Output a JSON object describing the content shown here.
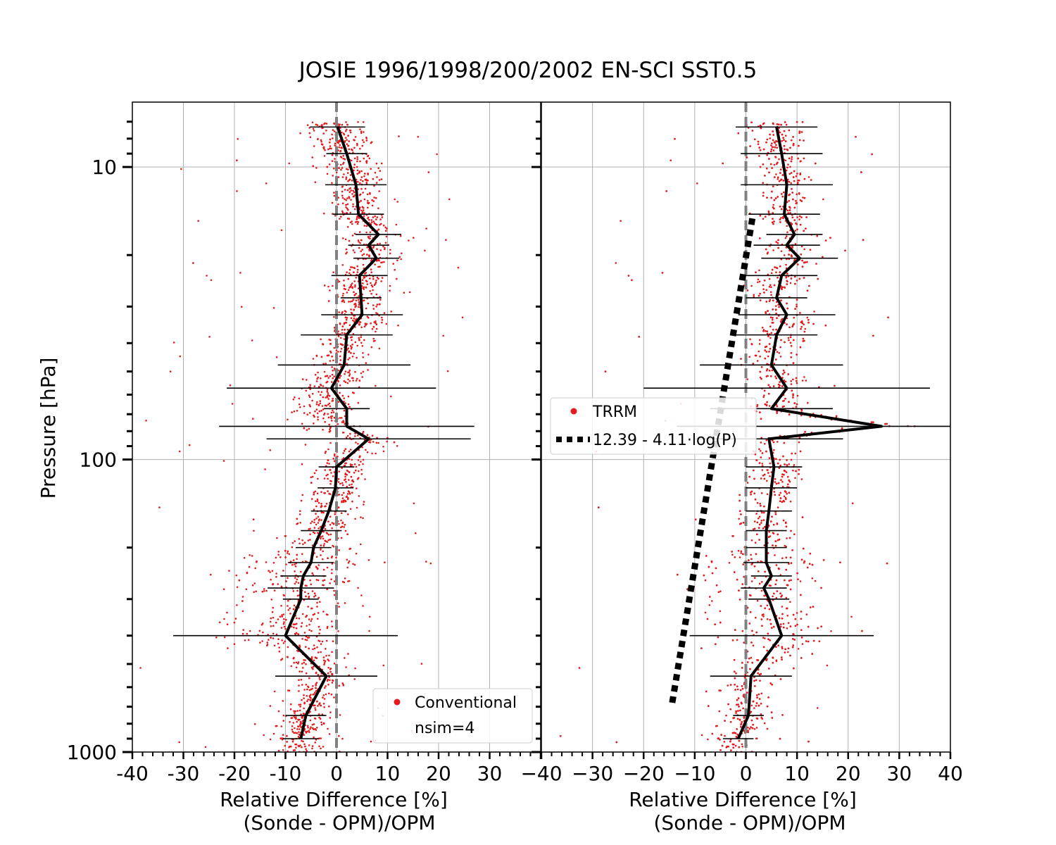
{
  "figure": {
    "title": "JOSIE 1996/1998/200/2002 EN-SCI SST0.5",
    "ylabel": "Pressure [hPa]",
    "xlabel_line1": "Relative Difference [%]",
    "xlabel_line2": "(Sonde - OPM)/OPM"
  },
  "chart_data": [
    {
      "type": "line",
      "panel": "left",
      "x_axis": {
        "range": [
          -40,
          40
        ],
        "ticks": [
          -40,
          -30,
          -20,
          -10,
          0,
          10,
          20,
          30
        ],
        "tick_labels": [
          "-40",
          "-30",
          "-20",
          "-10",
          "0",
          "10",
          "20",
          "30"
        ]
      },
      "y_axis": {
        "scale": "log",
        "inverted": true,
        "range": [
          1000,
          6
        ],
        "ticks": [
          10,
          100,
          1000
        ],
        "tick_labels": [
          "10",
          "100",
          "1000"
        ]
      },
      "grid": true,
      "reference_line": {
        "x": 0,
        "color": "#808080",
        "style": "dashed"
      },
      "legend": {
        "placement": "lower-right",
        "entries": [
          "Conventional",
          "nsim=4"
        ]
      },
      "series": [
        {
          "name": "Conventional",
          "kind": "median-with-error-bars",
          "color": "#000000",
          "points": [
            {
              "p": 7.3,
              "x": 0.2,
              "err": 5.4
            },
            {
              "p": 9.0,
              "x": 2.0,
              "err": 4.0
            },
            {
              "p": 11.5,
              "x": 3.8,
              "err": 6.0
            },
            {
              "p": 14.5,
              "x": 4.3,
              "err": 5.0
            },
            {
              "p": 17.0,
              "x": 8.2,
              "err": 4.5
            },
            {
              "p": 18.5,
              "x": 6.3,
              "err": 4.0
            },
            {
              "p": 20.5,
              "x": 7.8,
              "err": 4.5
            },
            {
              "p": 23.5,
              "x": 4.5,
              "err": 5.5
            },
            {
              "p": 28.0,
              "x": 4.8,
              "err": 4.0
            },
            {
              "p": 32.0,
              "x": 5.0,
              "err": 8.0
            },
            {
              "p": 37.5,
              "x": 2.0,
              "err": 9.0
            },
            {
              "p": 47.5,
              "x": 1.5,
              "err": 13.0
            },
            {
              "p": 57.0,
              "x": -1.0,
              "err": 20.5
            },
            {
              "p": 67.0,
              "x": 2.0,
              "err": 4.5
            },
            {
              "p": 77.0,
              "x": 2.0,
              "err": 25.0
            },
            {
              "p": 85.0,
              "x": 6.3,
              "err": 20.0
            },
            {
              "p": 106.0,
              "x": 0.0,
              "err": 3.5
            },
            {
              "p": 125.0,
              "x": -0.2,
              "err": 3.5
            },
            {
              "p": 150.0,
              "x": -1.5,
              "err": 3.5
            },
            {
              "p": 175.0,
              "x": -3.0,
              "err": 4.0
            },
            {
              "p": 200.0,
              "x": -4.5,
              "err": 3.5
            },
            {
              "p": 225.0,
              "x": -5.0,
              "err": 4.5
            },
            {
              "p": 250.0,
              "x": -6.5,
              "err": 4.5
            },
            {
              "p": 275.0,
              "x": -7.0,
              "err": 6.5
            },
            {
              "p": 300.0,
              "x": -7.0,
              "err": 3.5
            },
            {
              "p": 400.0,
              "x": -10.0,
              "err": 22.0
            },
            {
              "p": 550.0,
              "x": -2.0,
              "err": 10.0
            },
            {
              "p": 750.0,
              "x": -6.0,
              "err": 4.0
            },
            {
              "p": 900.0,
              "x": -7.0,
              "err": 3.5
            }
          ]
        }
      ]
    },
    {
      "type": "line",
      "panel": "right",
      "x_axis": {
        "range": [
          -40,
          40
        ],
        "ticks": [
          -40,
          -30,
          -20,
          -10,
          0,
          10,
          20,
          30,
          40
        ],
        "tick_labels": [
          "−40",
          "−30",
          "−20",
          "−10",
          "0",
          "10",
          "20",
          "30",
          "40"
        ]
      },
      "y_axis": {
        "scale": "log",
        "inverted": true,
        "range": [
          1000,
          6
        ],
        "shared_with": "left"
      },
      "grid": true,
      "reference_line": {
        "x": 0,
        "color": "#808080",
        "style": "dashed"
      },
      "legend": {
        "placement": "center-left",
        "entries": [
          "TRRM",
          "12.39 - 4.11·log(P)"
        ]
      },
      "series": [
        {
          "name": "TRRM",
          "kind": "median-with-error-bars",
          "color": "#000000",
          "points": [
            {
              "p": 7.3,
              "x": 6.0,
              "err": 8.0
            },
            {
              "p": 9.0,
              "x": 7.0,
              "err": 8.0
            },
            {
              "p": 11.5,
              "x": 8.0,
              "err": 9.0
            },
            {
              "p": 14.5,
              "x": 7.5,
              "err": 7.0
            },
            {
              "p": 17.0,
              "x": 9.5,
              "err": 5.5
            },
            {
              "p": 18.5,
              "x": 8.0,
              "err": 6.5
            },
            {
              "p": 20.5,
              "x": 10.5,
              "err": 7.5
            },
            {
              "p": 23.5,
              "x": 7.0,
              "err": 7.0
            },
            {
              "p": 28.0,
              "x": 6.0,
              "err": 6.0
            },
            {
              "p": 32.0,
              "x": 8.0,
              "err": 9.5
            },
            {
              "p": 37.5,
              "x": 6.0,
              "err": 8.0
            },
            {
              "p": 47.5,
              "x": 5.0,
              "err": 14.0
            },
            {
              "p": 57.0,
              "x": 8.0,
              "err": 28.0
            },
            {
              "p": 67.0,
              "x": 5.0,
              "err": 12.0
            },
            {
              "p": 77.0,
              "x": 26.5,
              "err": 40.0
            },
            {
              "p": 85.0,
              "x": 4.5,
              "err": 14.5
            },
            {
              "p": 106.0,
              "x": 5.5,
              "err": 5.5
            },
            {
              "p": 125.0,
              "x": 5.0,
              "err": 5.0
            },
            {
              "p": 150.0,
              "x": 4.5,
              "err": 4.5
            },
            {
              "p": 175.0,
              "x": 4.0,
              "err": 4.0
            },
            {
              "p": 200.0,
              "x": 4.0,
              "err": 4.0
            },
            {
              "p": 225.0,
              "x": 4.0,
              "err": 4.5
            },
            {
              "p": 250.0,
              "x": 5.0,
              "err": 4.0
            },
            {
              "p": 275.0,
              "x": 3.5,
              "err": 4.5
            },
            {
              "p": 300.0,
              "x": 4.5,
              "err": 4.0
            },
            {
              "p": 400.0,
              "x": 7.0,
              "err": 18.0
            },
            {
              "p": 550.0,
              "x": 1.0,
              "err": 8.0
            },
            {
              "p": 750.0,
              "x": 0.5,
              "err": 3.0
            },
            {
              "p": 900.0,
              "x": -1.5,
              "err": 3.0
            }
          ]
        },
        {
          "name": "12.39 - 4.11·log(P)",
          "kind": "fit",
          "color": "#000000",
          "style": "dotted-thick",
          "formula": {
            "a": 12.39,
            "b": -4.11,
            "p_range": [
              15,
              700
            ]
          }
        }
      ]
    }
  ],
  "colors": {
    "scatter": "#e41a1c",
    "grid": "#b0b0b0",
    "zero_line": "#808080",
    "series": "#000000"
  }
}
